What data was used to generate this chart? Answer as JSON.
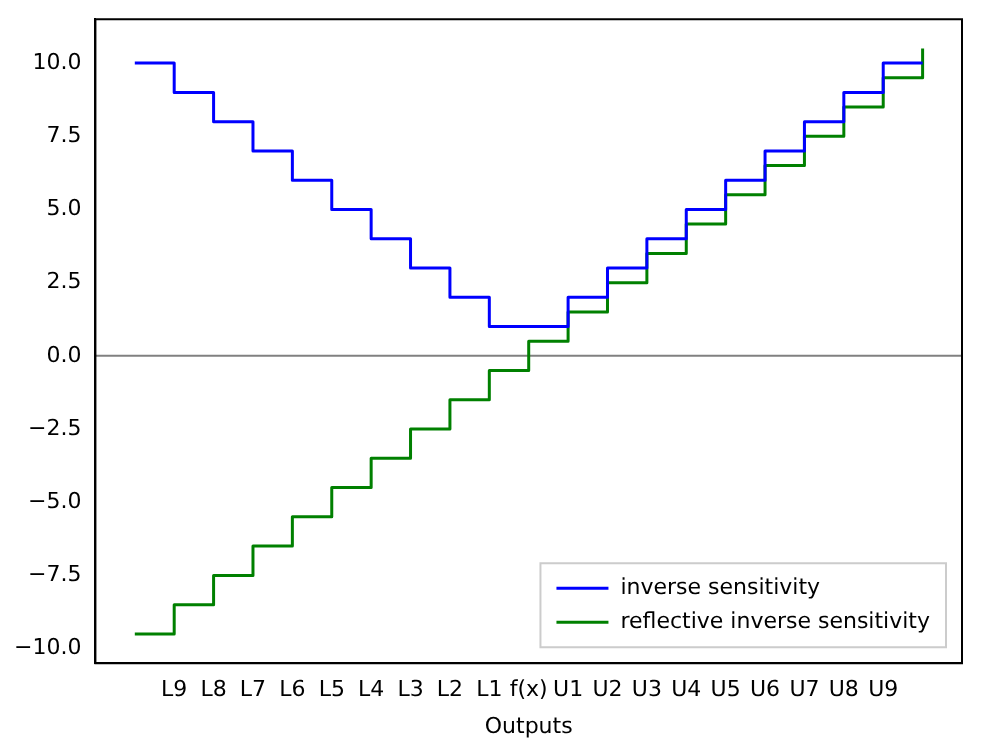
{
  "chart_data": {
    "type": "step",
    "xlabel": "Outputs",
    "categories": [
      null,
      "L9",
      "L8",
      "L7",
      "L6",
      "L5",
      "L4",
      "L3",
      "L2",
      "L1",
      "f(x)",
      "U1",
      "U2",
      "U3",
      "U4",
      "U5",
      "U6",
      "U7",
      "U8",
      "U9",
      null
    ],
    "series": [
      {
        "name": "inverse sensitivity",
        "color": "#0000ff",
        "values": [
          10,
          9,
          8,
          7,
          6,
          5,
          4,
          3,
          2,
          1,
          1,
          2,
          3,
          4,
          5,
          6,
          7,
          8,
          9,
          10,
          10
        ]
      },
      {
        "name": "reflective inverse sensitivity",
        "color": "#008000",
        "values": [
          -9.5,
          -8.5,
          -7.5,
          -6.5,
          -5.5,
          -4.5,
          -3.5,
          -2.5,
          -1.5,
          -0.5,
          0.5,
          1.5,
          2.5,
          3.5,
          4.5,
          5.5,
          6.5,
          7.5,
          8.5,
          9.5,
          10.5
        ]
      }
    ],
    "ylim": [
      -10.5,
      11.5
    ],
    "yticks": [
      {
        "value": -10,
        "label": "−10.0"
      },
      {
        "value": -7.5,
        "label": "−7.5"
      },
      {
        "value": -5,
        "label": "−5.0"
      },
      {
        "value": -2.5,
        "label": "−2.5"
      },
      {
        "value": 0,
        "label": "0.0"
      },
      {
        "value": 2.5,
        "label": "2.5"
      },
      {
        "value": 5,
        "label": "5.0"
      },
      {
        "value": 7.5,
        "label": "7.5"
      },
      {
        "value": 10,
        "label": "10.0"
      }
    ],
    "ref_lines": [
      {
        "axis": "y",
        "value": 0,
        "color": "#808080"
      }
    ],
    "legend": "bottom right",
    "grid": false
  }
}
